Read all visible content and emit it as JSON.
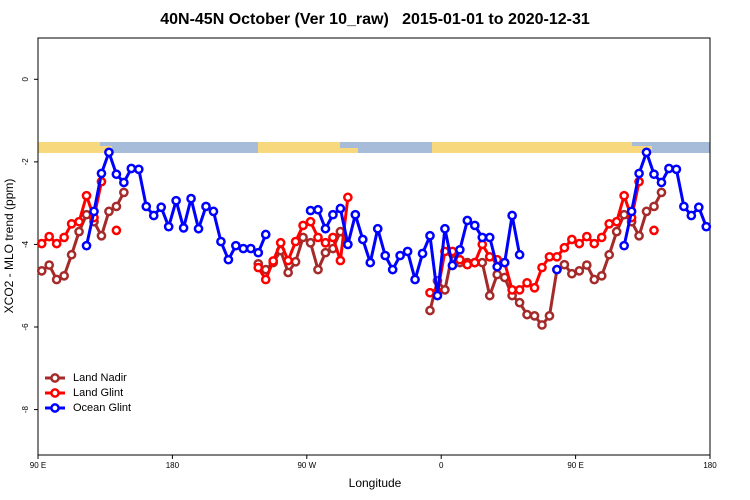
{
  "chart_data": {
    "type": "line",
    "title": "40N-45N October (Ver 10_raw)   2015-01-01 to 2020-12-31",
    "x_label": "Longitude",
    "y_label": "XCO2 - MLO trend (ppm)",
    "xlim": [
      90,
      540
    ],
    "ylim": [
      -9.1,
      1.0
    ],
    "xticks": [
      {
        "value": 90,
        "label": "90 E"
      },
      180,
      {
        "value": 270,
        "label": "90 W"
      },
      {
        "value": 360,
        "label": "0"
      },
      {
        "value": 450,
        "label": "90 E"
      },
      {
        "value": 540,
        "label": "180"
      }
    ],
    "yticks": [
      0,
      -2,
      -4,
      -6,
      -8
    ],
    "legend": "bottom-left",
    "x": [
      92.5,
      97.5,
      102.5,
      107.5,
      112.5,
      117.5,
      122.5,
      127.5,
      132.5,
      137.5,
      142.5,
      147.5,
      152.5,
      157.5,
      162.5,
      167.5,
      172.5,
      177.5,
      182.5,
      187.5,
      192.5,
      197.5,
      202.5,
      207.5,
      212.5,
      217.5,
      222.5,
      227.5,
      232.5,
      237.5,
      242.5,
      247.5,
      252.5,
      257.5,
      262.5,
      267.5,
      272.5,
      277.5,
      282.5,
      287.5,
      292.5,
      297.5,
      302.5,
      307.5,
      312.5,
      317.5,
      322.5,
      327.5,
      332.5,
      337.5,
      342.5,
      347.5,
      352.5,
      357.5,
      362.5,
      367.5,
      372.5,
      377.5,
      382.5,
      387.5,
      392.5,
      397.5,
      402.5,
      407.5,
      412.5,
      417.5,
      422.5,
      427.5,
      432.5,
      437.5,
      442.5,
      447.5,
      452.5,
      457.5,
      462.5,
      467.5,
      472.5,
      477.5,
      482.5,
      487.5,
      492.5,
      497.5,
      502.5,
      507.5,
      512.5,
      517.5,
      522.5,
      527.5,
      532.5,
      537.5
    ],
    "series": [
      {
        "name": "Land Nadir",
        "color": "#a52a2a",
        "values": [
          -4.64,
          -4.5,
          -4.85,
          -4.76,
          -4.25,
          -3.69,
          -3.28,
          -3.45,
          -3.79,
          -3.2,
          -3.08,
          -2.74,
          null,
          null,
          null,
          null,
          null,
          null,
          null,
          null,
          null,
          null,
          null,
          null,
          null,
          null,
          null,
          null,
          null,
          -4.47,
          -4.61,
          -4.44,
          -4.15,
          -4.68,
          -4.42,
          -3.83,
          -3.96,
          -4.61,
          -4.2,
          -4.1,
          -3.69,
          -4.0,
          null,
          null,
          null,
          null,
          null,
          null,
          null,
          null,
          null,
          null,
          -5.6,
          -4.88,
          -5.1,
          -4.22,
          -4.44,
          -4.44,
          -4.44,
          -4.44,
          -5.24,
          -4.73,
          -4.8,
          -5.24,
          -5.41,
          -5.7,
          -5.73,
          -5.95,
          -5.73,
          -4.61,
          -4.49,
          -4.71,
          -4.64,
          -4.5,
          -4.85,
          -4.76,
          -4.25,
          -3.69,
          -3.28,
          -3.45,
          -3.79,
          -3.2,
          -3.08,
          -2.74,
          null,
          null,
          null,
          null,
          null,
          null
        ]
      },
      {
        "name": "Land Glint",
        "color": "#ff0000",
        "values": [
          -3.98,
          -3.81,
          -3.98,
          -3.83,
          -3.5,
          -3.45,
          -2.82,
          -3.35,
          -2.48,
          null,
          -3.66,
          null,
          null,
          null,
          null,
          null,
          null,
          null,
          null,
          null,
          null,
          null,
          null,
          null,
          null,
          null,
          null,
          null,
          null,
          -4.56,
          -4.85,
          -4.4,
          -3.96,
          -4.39,
          -3.93,
          -3.54,
          -3.45,
          -3.83,
          -3.96,
          -3.83,
          -4.39,
          -2.86,
          null,
          null,
          null,
          null,
          null,
          null,
          null,
          null,
          null,
          null,
          -5.17,
          -5.15,
          -4.17,
          -4.17,
          -4.37,
          -4.49,
          -4.44,
          -4.0,
          -4.3,
          -4.37,
          -4.44,
          -5.1,
          -5.1,
          -4.93,
          -5.05,
          -4.56,
          -4.3,
          -4.3,
          -4.08,
          -3.88,
          -3.98,
          -3.81,
          -3.98,
          -3.83,
          -3.5,
          -3.45,
          -2.82,
          -3.35,
          -2.48,
          null,
          -3.66,
          null,
          null,
          null,
          null,
          null,
          null,
          null
        ]
      },
      {
        "name": "Ocean Glint",
        "color": "#0000ff",
        "values": [
          null,
          null,
          null,
          null,
          null,
          null,
          -4.03,
          -3.2,
          -2.28,
          -1.77,
          -2.3,
          -2.5,
          -2.16,
          -2.18,
          -3.08,
          -3.3,
          -3.1,
          -3.57,
          -2.94,
          -3.6,
          -2.89,
          -3.62,
          -3.08,
          -3.2,
          -3.93,
          -4.37,
          -4.03,
          -4.1,
          -4.1,
          -4.2,
          -3.76,
          null,
          null,
          null,
          null,
          null,
          -3.18,
          -3.16,
          -3.62,
          -3.28,
          -3.13,
          -4.0,
          -3.28,
          -3.88,
          -4.44,
          -3.62,
          -4.27,
          -4.61,
          -4.27,
          -4.17,
          -4.85,
          -4.22,
          -3.79,
          -5.24,
          -3.62,
          -4.51,
          -4.13,
          -3.42,
          -3.54,
          -3.83,
          -3.83,
          -4.54,
          -4.44,
          -3.3,
          -4.25,
          null,
          null,
          null,
          null,
          -4.61,
          null,
          null,
          null,
          null,
          null,
          null,
          null,
          null,
          -4.03,
          -3.2,
          -2.28,
          -1.77,
          -2.3,
          -2.5,
          -2.16,
          -2.18,
          -3.08,
          -3.3,
          -3.1,
          -3.57
        ]
      }
    ]
  }
}
